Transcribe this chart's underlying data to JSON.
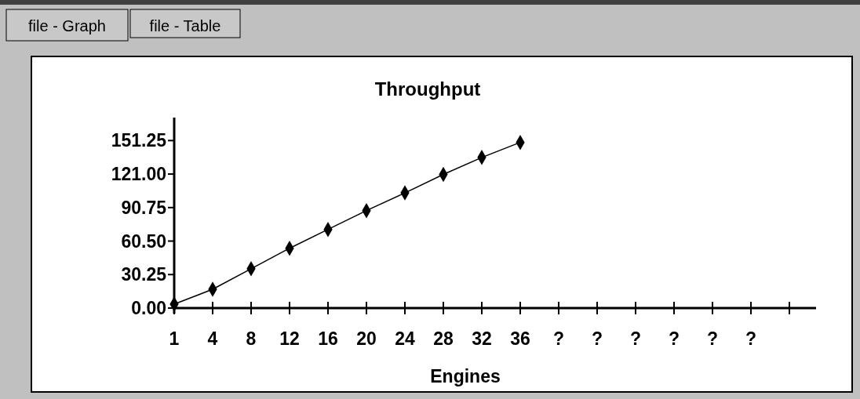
{
  "chart_data": {
    "type": "line",
    "title": "Throughput",
    "xlabel": "Engines",
    "categories": [
      "1",
      "4",
      "8",
      "12",
      "16",
      "20",
      "24",
      "28",
      "32",
      "36",
      "?",
      "?",
      "?",
      "?",
      "?",
      "?",
      null
    ],
    "values": [
      3.5,
      17,
      35.5,
      54,
      71,
      88,
      104,
      120.7,
      136,
      149.6,
      null,
      null,
      null,
      null,
      null,
      null,
      null
    ],
    "color": "#000000",
    "marker": "diamond",
    "line_style": "solid",
    "ylim": [
      0,
      172
    ],
    "yticks": [
      {
        "value": 0,
        "label": "0.00"
      },
      {
        "value": 30.25,
        "label": "30.25"
      },
      {
        "value": 60.5,
        "label": "60.50"
      },
      {
        "value": 90.75,
        "label": "90.75"
      },
      {
        "value": 121,
        "label": "121.00"
      },
      {
        "value": 151.25,
        "label": "151.25"
      }
    ],
    "grid": false,
    "annotations": [
      "file - Graph",
      "file - Table"
    ]
  }
}
